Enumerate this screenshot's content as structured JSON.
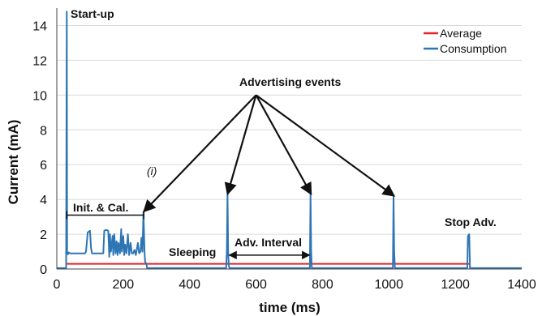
{
  "chart_data": {
    "type": "line",
    "title": "",
    "xlabel": "time (ms)",
    "ylabel": "Current (mA)",
    "xlim": [
      0,
      1400
    ],
    "ylim": [
      0,
      15
    ],
    "xticks": [
      0,
      200,
      400,
      600,
      800,
      1000,
      1200,
      1400
    ],
    "yticks": [
      0,
      2,
      4,
      6,
      8,
      10,
      12,
      14
    ],
    "grid": "horizontal",
    "legend_position": "top-right",
    "series": [
      {
        "name": "Average",
        "color": "#e3242b",
        "x": [
          30,
          1245
        ],
        "y": [
          0.3,
          0.3
        ]
      },
      {
        "name": "Consumption",
        "color": "#2e75b6",
        "x": [
          0,
          28,
          30,
          31,
          33,
          36,
          36,
          40,
          85,
          88,
          93,
          100,
          103,
          106,
          140,
          143,
          148,
          155,
          158,
          160,
          163,
          168,
          170,
          173,
          177,
          180,
          183,
          186,
          190,
          194,
          196,
          200,
          203,
          206,
          210,
          214,
          218,
          222,
          226,
          230,
          234,
          238,
          240,
          244,
          248,
          252,
          255,
          258,
          261,
          264,
          266,
          270,
          272,
          300,
          510,
          512,
          514,
          516,
          518,
          520,
          560,
          762,
          764,
          766,
          768,
          770,
          810,
          1012,
          1014,
          1016,
          1018,
          1020,
          1060,
          1236,
          1238,
          1242,
          1244,
          1246,
          1300,
          1400
        ],
        "y": [
          0.05,
          0.05,
          14.8,
          1.0,
          0.85,
          0.9,
          0.95,
          0.9,
          0.9,
          1.0,
          2.1,
          2.2,
          1.2,
          0.9,
          0.9,
          2.2,
          2.25,
          2.2,
          0.7,
          2.0,
          1.0,
          1.9,
          0.8,
          2.0,
          0.9,
          1.6,
          0.8,
          1.5,
          0.9,
          2.3,
          1.0,
          1.9,
          0.8,
          1.4,
          0.9,
          2.0,
          0.8,
          1.5,
          0.9,
          0.9,
          1.1,
          0.8,
          1.0,
          1.5,
          0.9,
          1.0,
          1.8,
          1.0,
          3.3,
          1.0,
          0.4,
          0.3,
          0.05,
          0.05,
          0.05,
          1.0,
          4.3,
          0.9,
          0.2,
          0.05,
          0.05,
          0.05,
          4.3,
          1.0,
          0.05,
          0.05,
          0.05,
          0.05,
          4.2,
          1.0,
          0.05,
          0.05,
          0.05,
          0.05,
          1.9,
          2.0,
          0.05,
          0.05,
          0.05,
          0.05
        ]
      }
    ],
    "annotations": {
      "startup": "Start-up",
      "adv_events": "Advertising events",
      "marker_i": "(i)",
      "init_cal": "Init. & Cal.",
      "sleeping": "Sleeping",
      "adv_interval": "Adv. Interval",
      "stop_adv": "Stop Adv."
    },
    "arrow_targets": [
      {
        "x": 262,
        "y": 3.3
      },
      {
        "x": 514,
        "y": 4.3
      },
      {
        "x": 766,
        "y": 4.3
      },
      {
        "x": 1016,
        "y": 4.2
      }
    ],
    "arrow_source": {
      "x": 600,
      "y": 10.0
    },
    "init_cal_range": {
      "x": [
        30,
        262
      ],
      "y": 3.1
    },
    "adv_interval_range": {
      "x": [
        514,
        766
      ],
      "y": 0.8
    }
  }
}
